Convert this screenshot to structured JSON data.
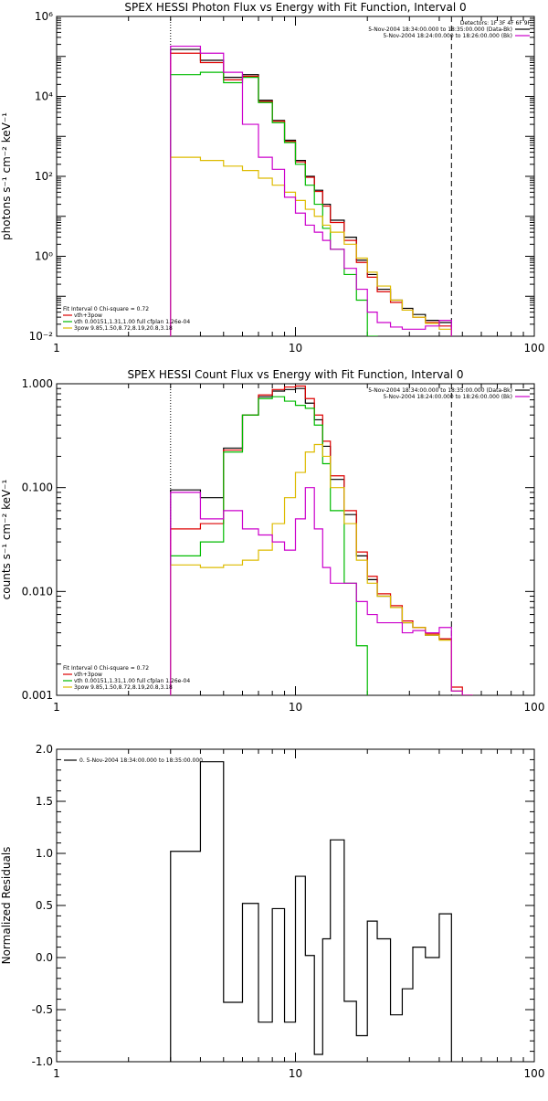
{
  "chart_data": [
    {
      "id": "photon",
      "type": "line",
      "title": "SPEX HESSI Photon Flux vs Energy with Fit Function, Interval 0",
      "xlabel": "",
      "ylabel": "photons s⁻¹ cm⁻² keV⁻¹",
      "xscale": "log",
      "yscale": "log",
      "xlim": [
        1,
        100
      ],
      "ylim": [
        0.01,
        1000000
      ],
      "xticks": [
        1,
        10,
        100
      ],
      "xtick_labels": [
        "1",
        "10",
        "100"
      ],
      "yticks": [
        0.01,
        1,
        100,
        10000,
        1000000
      ],
      "ytick_labels": [
        "10⁻²",
        "10⁰",
        "10²",
        "10⁴",
        "10⁶"
      ],
      "vlines": [
        {
          "x": 3,
          "style": "dotted"
        },
        {
          "x": 45,
          "style": "dashed"
        }
      ],
      "legend_top": {
        "header": "Detectors: 1F 3F 4F 6F 9F",
        "entries": [
          {
            "text": "5-Nov-2004 18:34:00.000 to 18:35:00.000 (Data-Bk)",
            "color": "#000000"
          },
          {
            "text": "5-Nov-2004 18:24:00.000 to 18:26:00.000 (Bk)",
            "color": "#cc00cc"
          }
        ]
      },
      "legend_bottom": {
        "header": "Fit Interval 0   Chi-square = 0.72",
        "entries": [
          {
            "text": "vth+3pow",
            "color": "#dd0000"
          },
          {
            "text": "vth 0.00151,1.31,1.00  full cfplan 1.26e-04",
            "color": "#00bb00"
          },
          {
            "text": "3pow 9.85,1.50,8.72,8.19,20.8,3.18",
            "color": "#ddbb00"
          }
        ]
      },
      "edges": [
        3,
        4,
        5,
        6,
        7,
        8,
        9,
        10,
        11,
        12,
        13,
        14,
        16,
        18,
        20,
        22,
        25,
        28,
        31,
        35,
        40,
        45
      ],
      "series": [
        {
          "name": "5-Nov-2004 18:34:00.000 to 18:35:00.000 (Data-Bk)",
          "color": "#000000",
          "values": [
            150000,
            80000,
            30000,
            35000,
            8000,
            2500,
            800,
            250,
            100,
            45,
            20,
            8,
            3,
            0.8,
            0.35,
            0.15,
            0.08,
            0.05,
            0.035,
            0.025,
            0.022
          ]
        },
        {
          "name": "vth+3pow",
          "color": "#dd0000",
          "values": [
            120000,
            70000,
            26000,
            32000,
            7500,
            2400,
            750,
            230,
            95,
            42,
            18,
            7,
            2.5,
            0.7,
            0.3,
            0.13,
            0.07,
            0.045,
            0.03,
            0.022,
            0.018
          ]
        },
        {
          "name": "vth",
          "color": "#00bb00",
          "values": [
            35000,
            40000,
            22000,
            30000,
            7000,
            2200,
            700,
            200,
            60,
            20,
            5,
            1.5,
            0.35,
            0.08,
            0.01
          ]
        },
        {
          "name": "3pow",
          "color": "#ddbb00",
          "values": [
            300,
            250,
            180,
            140,
            90,
            60,
            40,
            25,
            15,
            10,
            6,
            4,
            2,
            0.9,
            0.4,
            0.18,
            0.08,
            0.045,
            0.03,
            0.021,
            0.015
          ]
        },
        {
          "name": "5-Nov-2004 18:24:00.000 to 18:26:00.000 (Bk)",
          "color": "#cc00cc",
          "values": [
            180000,
            120000,
            40000,
            2000,
            300,
            150,
            30,
            12,
            6,
            4,
            2.5,
            1.5,
            0.5,
            0.15,
            0.04,
            0.022,
            0.017,
            0.015,
            0.015,
            0.018,
            0.025
          ]
        }
      ]
    },
    {
      "id": "count",
      "type": "line",
      "title": "SPEX HESSI Count Flux vs Energy with Fit Function, Interval 0",
      "xlabel": "",
      "ylabel": "counts s⁻¹ cm⁻² keV⁻¹",
      "xscale": "log",
      "yscale": "log",
      "xlim": [
        1,
        100
      ],
      "ylim": [
        0.001,
        1.0
      ],
      "xticks": [
        1,
        10,
        100
      ],
      "xtick_labels": [
        "1",
        "10",
        "100"
      ],
      "yticks": [
        0.001,
        0.01,
        0.1,
        1.0
      ],
      "ytick_labels": [
        "0.001",
        "0.010",
        "0.100",
        "1.000"
      ],
      "vlines": [
        {
          "x": 3,
          "style": "dotted"
        },
        {
          "x": 45,
          "style": "dashed"
        }
      ],
      "legend_top": {
        "header": "",
        "entries": [
          {
            "text": "5-Nov-2004 18:34:00.000 to 18:35:00.000 (Data-Bk)",
            "color": "#000000"
          },
          {
            "text": "5-Nov-2004 18:24:00.000 to 18:26:00.000 (Bk)",
            "color": "#cc00cc"
          }
        ]
      },
      "legend_bottom": {
        "header": "Fit Interval 0   Chi-square = 0.72",
        "entries": [
          {
            "text": "vth+3pow",
            "color": "#dd0000"
          },
          {
            "text": "vth 0.00151,1.31,1.00  full cfplan 1.26e-04",
            "color": "#00bb00"
          },
          {
            "text": "3pow 9.85,1.50,8.72,8.19,20.8,3.18",
            "color": "#ddbb00"
          }
        ]
      },
      "edges": [
        3,
        4,
        5,
        6,
        7,
        8,
        9,
        10,
        11,
        12,
        13,
        14,
        16,
        18,
        20,
        22,
        25,
        28,
        31,
        35,
        40,
        45,
        50,
        55
      ],
      "series": [
        {
          "name": "5-Nov-2004 18:34:00.000 to 18:35:00.000 (Data-Bk)",
          "color": "#000000",
          "values": [
            0.095,
            0.08,
            0.24,
            0.5,
            0.75,
            0.85,
            0.88,
            0.9,
            0.65,
            0.45,
            0.25,
            0.12,
            0.055,
            0.022,
            0.013,
            0.009,
            0.007,
            0.005,
            0.0045,
            0.0038,
            0.0035,
            0.0011,
            0.001
          ]
        },
        {
          "name": "vth+3pow",
          "color": "#dd0000",
          "values": [
            0.04,
            0.045,
            0.23,
            0.5,
            0.78,
            0.88,
            0.93,
            0.95,
            0.72,
            0.5,
            0.28,
            0.13,
            0.06,
            0.024,
            0.014,
            0.0095,
            0.0073,
            0.0052,
            0.0045,
            0.0039,
            0.0035,
            0.0012,
            0.001
          ]
        },
        {
          "name": "vth",
          "color": "#00bb00",
          "values": [
            0.022,
            0.03,
            0.22,
            0.5,
            0.72,
            0.75,
            0.68,
            0.62,
            0.58,
            0.4,
            0.17,
            0.06,
            0.012,
            0.003
          ]
        },
        {
          "name": "3pow",
          "color": "#ddbb00",
          "values": [
            0.018,
            0.017,
            0.018,
            0.02,
            0.025,
            0.045,
            0.08,
            0.14,
            0.22,
            0.26,
            0.2,
            0.1,
            0.045,
            0.02,
            0.012,
            0.009,
            0.007,
            0.005,
            0.0045,
            0.0038,
            0.0034,
            0.0011,
            0.001
          ]
        },
        {
          "name": "5-Nov-2004 18:24:00.000 to 18:26:00.000 (Bk)",
          "color": "#cc00cc",
          "values": [
            0.09,
            0.05,
            0.06,
            0.04,
            0.035,
            0.03,
            0.025,
            0.05,
            0.1,
            0.04,
            0.017,
            0.012,
            0.012,
            0.008,
            0.006,
            0.005,
            0.005,
            0.004,
            0.0042,
            0.004,
            0.0045,
            0.0011,
            0.001
          ]
        }
      ]
    },
    {
      "id": "resid",
      "type": "line",
      "title": "",
      "xlabel": "",
      "ylabel": "Normalized Residuals",
      "xscale": "log",
      "yscale": "linear",
      "xlim": [
        1,
        100
      ],
      "ylim": [
        -1.0,
        2.0
      ],
      "xticks": [
        1,
        10,
        100
      ],
      "xtick_labels": [
        "1",
        "10",
        "100"
      ],
      "yticks": [
        -1.0,
        -0.5,
        0.0,
        0.5,
        1.0,
        1.5,
        2.0
      ],
      "ytick_labels": [
        "-1.0",
        "-0.5",
        "0.0",
        "0.5",
        "1.0",
        "1.5",
        "2.0"
      ],
      "vlines": [],
      "legend_top_left": {
        "entries": [
          {
            "text": "0. 5-Nov-2004 18:34:00.000 to 18:35:00.000",
            "color": "#000000"
          }
        ]
      },
      "edges": [
        3,
        4,
        5,
        6,
        7,
        8,
        9,
        10,
        11,
        12,
        13,
        14,
        16,
        18,
        20,
        22,
        25,
        28,
        31,
        35,
        40,
        45
      ],
      "series": [
        {
          "name": "0. 5-Nov-2004 18:34:00.000 to 18:35:00.000",
          "color": "#000000",
          "values": [
            1.02,
            1.88,
            -0.43,
            0.52,
            -0.62,
            0.47,
            -0.62,
            0.78,
            0.02,
            -0.93,
            0.18,
            1.13,
            -0.42,
            -0.75,
            0.35,
            0.18,
            -0.55,
            -0.3,
            0.1,
            0.0,
            0.42
          ]
        }
      ]
    }
  ]
}
